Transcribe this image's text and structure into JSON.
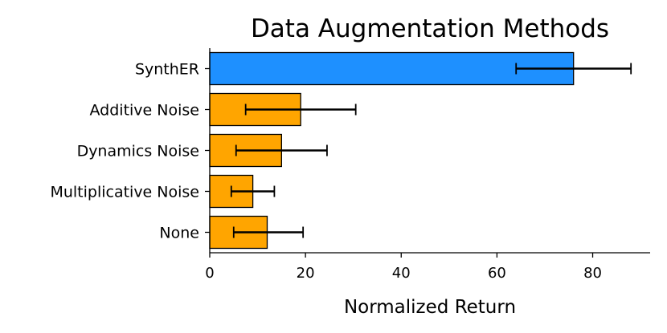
{
  "chart_data": {
    "type": "bar",
    "orientation": "horizontal",
    "title": "Data Augmentation Methods",
    "xlabel": "Normalized Return",
    "ylabel": "",
    "xlim": [
      0,
      92
    ],
    "xticks": [
      0,
      20,
      40,
      60,
      80
    ],
    "grid": false,
    "legend": "none",
    "categories": [
      "SynthER",
      "Additive Noise",
      "Dynamics Noise",
      "Multiplicative Noise",
      "None"
    ],
    "values": [
      76,
      19,
      15,
      9,
      12
    ],
    "error_low": [
      64,
      7.5,
      5.5,
      4.5,
      5
    ],
    "error_high": [
      88,
      30.5,
      24.5,
      13.5,
      19.5
    ],
    "colors": [
      "#1e90ff",
      "#ffa500",
      "#ffa500",
      "#ffa500",
      "#ffa500"
    ]
  }
}
